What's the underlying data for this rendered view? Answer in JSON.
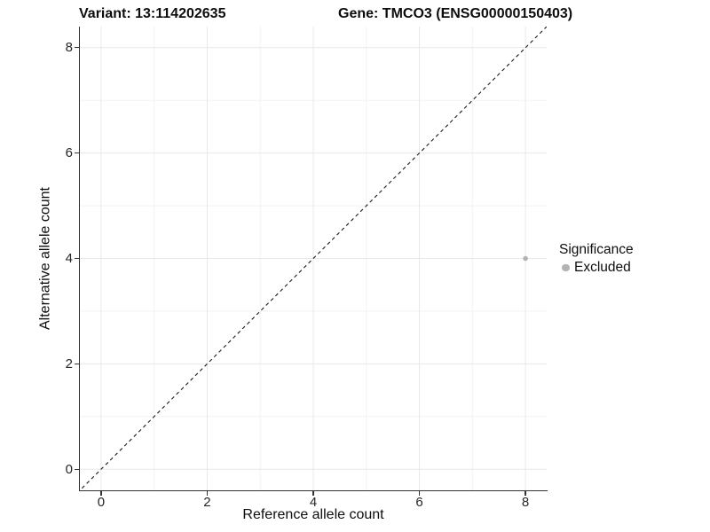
{
  "chart_data": {
    "type": "scatter",
    "titles": {
      "variant": "Variant: 13:114202635",
      "gene": "Gene: TMCO3 (ENSG00000150403)"
    },
    "xlabel": "Reference allele count",
    "ylabel": "Alternative allele count",
    "xlim": [
      -0.4,
      8.4
    ],
    "ylim": [
      -0.4,
      8.4
    ],
    "x_major_ticks": [
      0,
      2,
      4,
      6,
      8
    ],
    "x_minor_ticks": [
      1,
      3,
      5,
      7
    ],
    "y_major_ticks": [
      0,
      2,
      4,
      6,
      8
    ],
    "y_minor_ticks": [
      1,
      3,
      5,
      7
    ],
    "grid": true,
    "points": [
      {
        "x": 8,
        "y": 4,
        "series": "Excluded"
      }
    ],
    "reference_line": {
      "kind": "identity",
      "style": "dashed",
      "from": -0.45,
      "to": 8.45
    },
    "legend": {
      "title": "Significance",
      "position": "right",
      "entries": [
        {
          "label": "Excluded",
          "color": "#b3b3b3"
        }
      ]
    },
    "colors": {
      "point": "#b3b3b3",
      "grid_major": "#e8e8e8",
      "grid_minor": "#f2f2f2",
      "axis": "#333333",
      "reference_line": "#1a1a1a"
    }
  }
}
